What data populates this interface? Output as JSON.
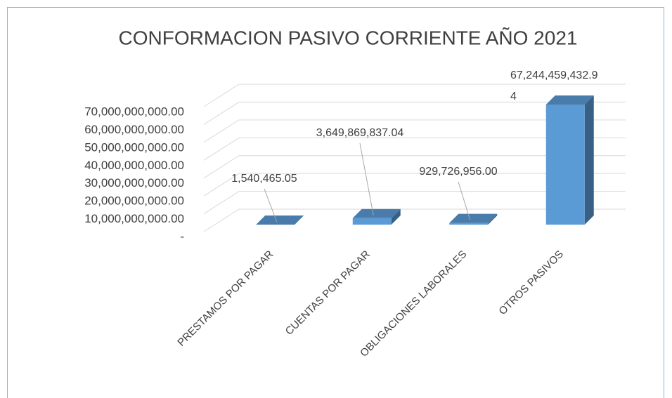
{
  "chart_data": {
    "type": "bar3d",
    "title": "CONFORMACION PASIVO CORRIENTE AÑO 2021",
    "categories": [
      "PRESTAMOS POR PAGAR",
      "CUENTAS POR PAGAR",
      "OBLIGACIONES LABORALES",
      "OTROS PASIVOS"
    ],
    "values": [
      1540465.05,
      3649869837.04,
      929726956.0,
      67244459432.94
    ],
    "value_labels": [
      "1,540,465.05",
      "3,649,869,837.04",
      "929,726,956.00",
      "67,244,459,432.94"
    ],
    "color": "#5b9bd5",
    "ylim": [
      0,
      70000000000
    ],
    "yticks": [
      {
        "value": 0,
        "label": "-"
      },
      {
        "value": 10000000000,
        "label": "10,000,000,000.00"
      },
      {
        "value": 20000000000,
        "label": "20,000,000,000.00"
      },
      {
        "value": 30000000000,
        "label": "30,000,000,000.00"
      },
      {
        "value": 40000000000,
        "label": "40,000,000,000.00"
      },
      {
        "value": 50000000000,
        "label": "50,000,000,000.00"
      },
      {
        "value": 60000000000,
        "label": "60,000,000,000.00"
      },
      {
        "value": 70000000000,
        "label": "70,000,000,000.00"
      }
    ],
    "grid": true
  }
}
